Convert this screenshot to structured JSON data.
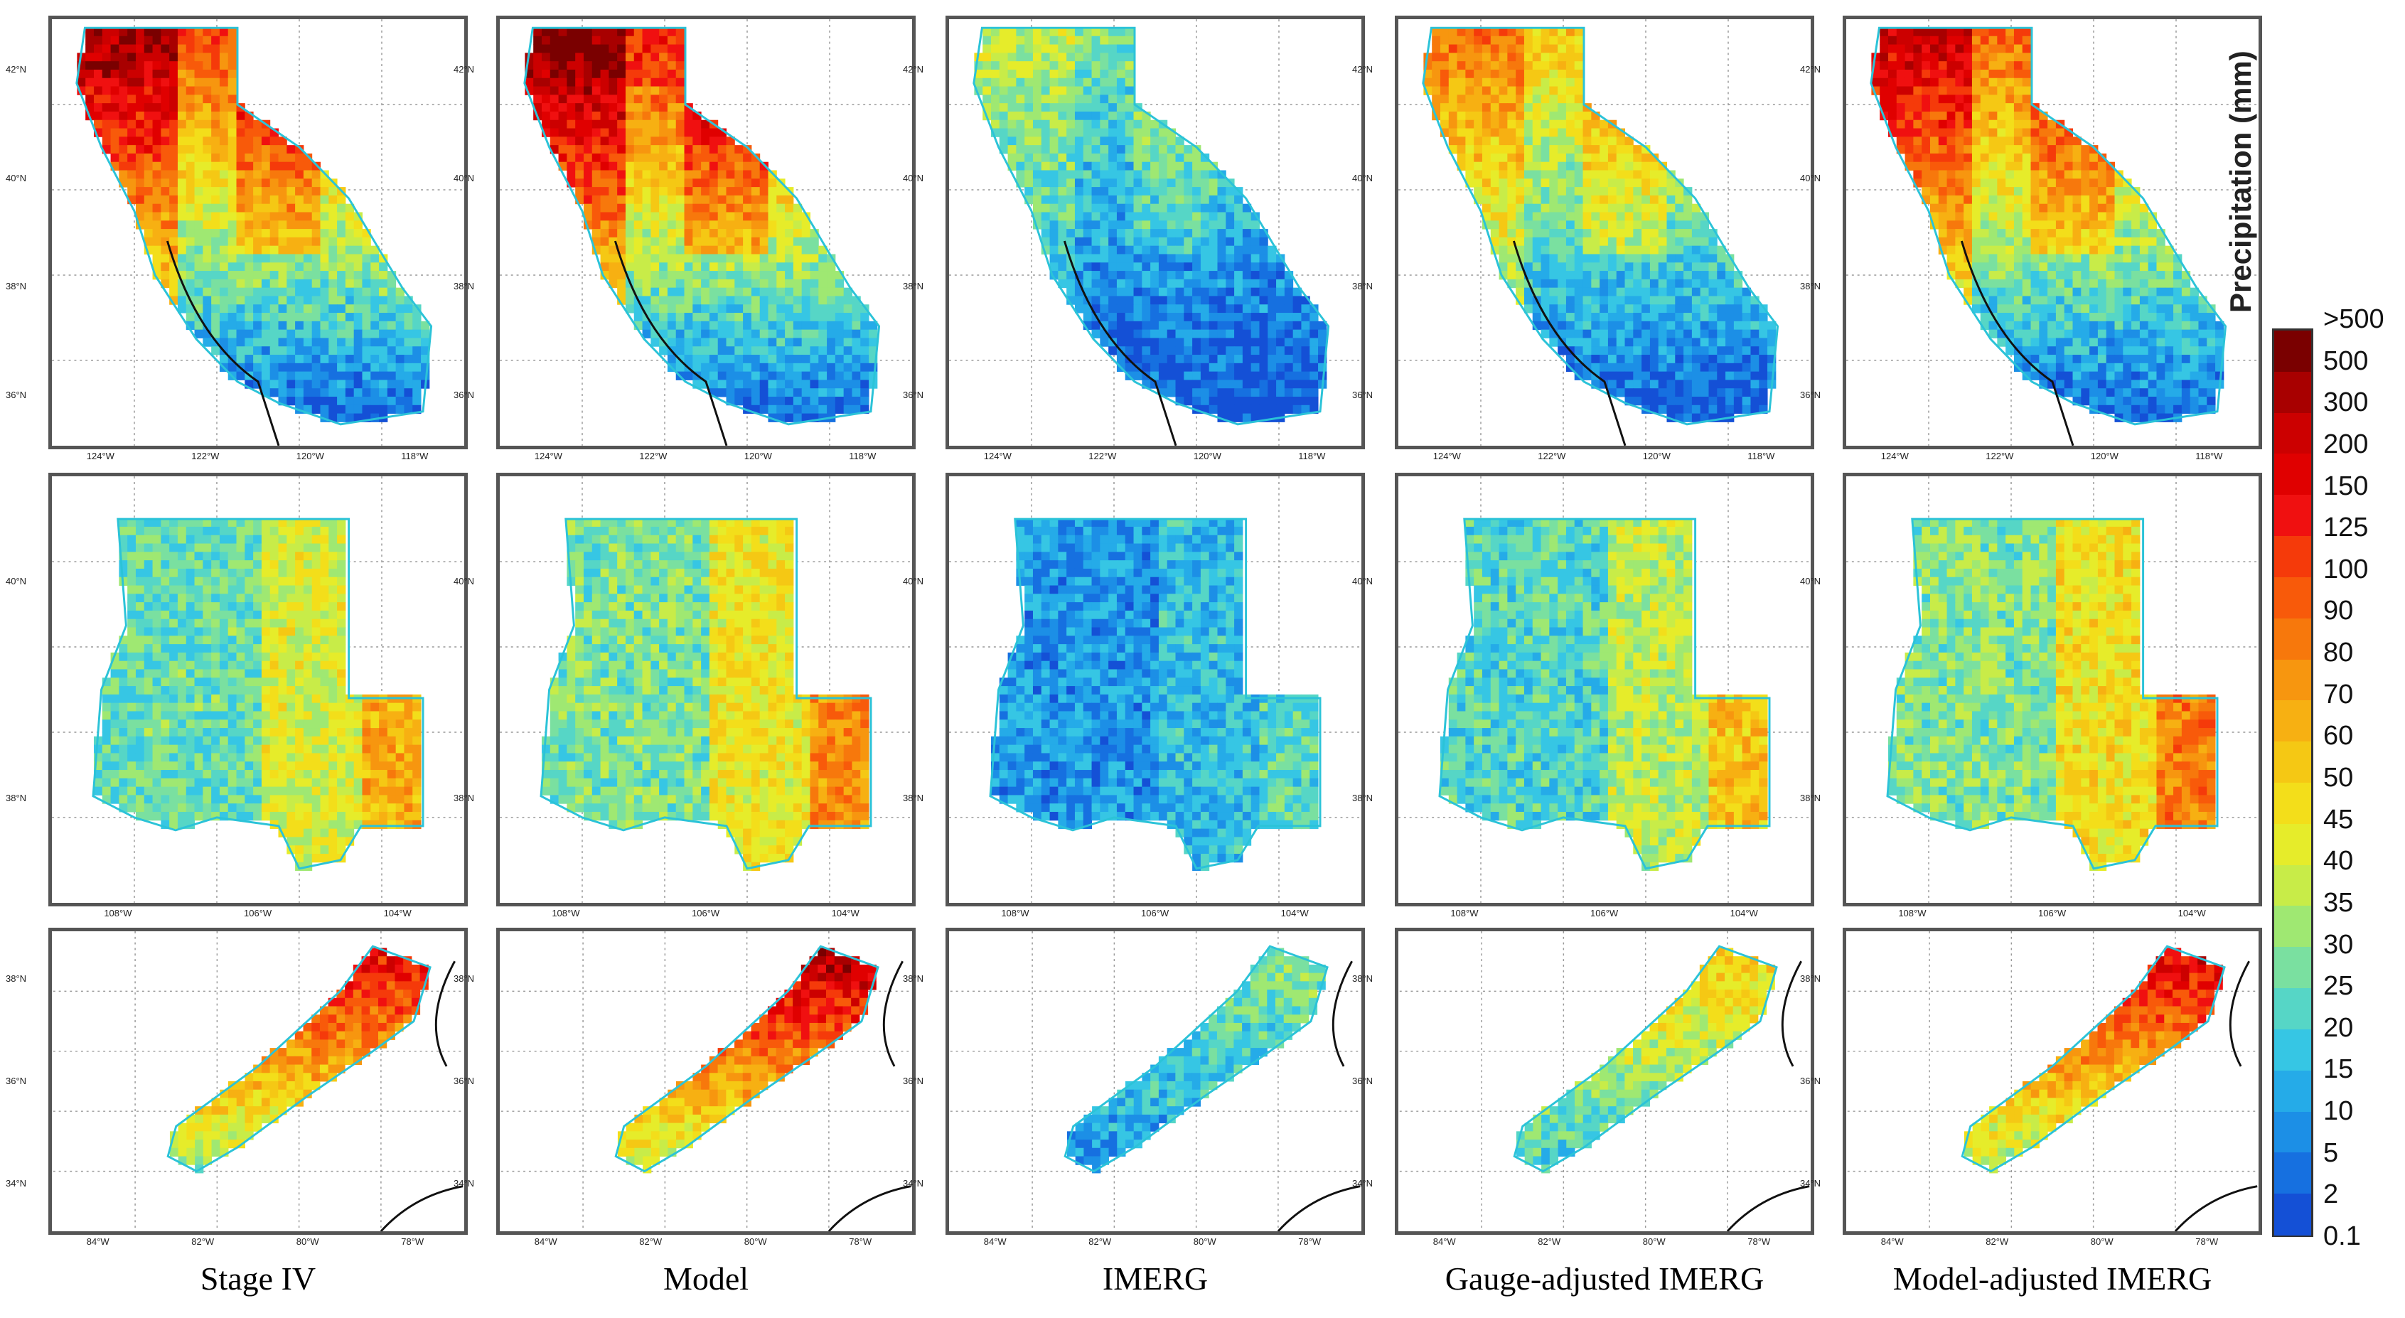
{
  "figure": {
    "columns": [
      {
        "label": "Stage IV"
      },
      {
        "label": "Model"
      },
      {
        "label": "IMERG"
      },
      {
        "label": "Gauge-adjusted IMERG"
      },
      {
        "label": "Model-adjusted IMERG"
      }
    ],
    "rows": [
      {
        "region": "california",
        "lat_ticks": [
          "42°N",
          "40°N",
          "38°N",
          "36°N"
        ],
        "lon_ticks": [
          "124°W",
          "122°W",
          "120°W",
          "118°W"
        ],
        "intensity": [
          0.85,
          0.9,
          0.35,
          0.6,
          0.8
        ]
      },
      {
        "region": "colorado",
        "lat_ticks": [
          "40°N",
          "38°N"
        ],
        "lon_ticks": [
          "108°W",
          "106°W",
          "104°W"
        ],
        "intensity": [
          0.55,
          0.6,
          0.25,
          0.5,
          0.62
        ]
      },
      {
        "region": "southeast",
        "lat_ticks": [
          "38°N",
          "36°N",
          "34°N"
        ],
        "lon_ticks": [
          "84°W",
          "82°W",
          "80°W",
          "78°W"
        ],
        "intensity": [
          0.8,
          0.88,
          0.3,
          0.5,
          0.82
        ]
      }
    ]
  },
  "colorbar": {
    "title": "Precipitation  (mm)",
    "labels": [
      ">500",
      "500",
      "300",
      "200",
      "150",
      "125",
      "100",
      "90",
      "80",
      "70",
      "60",
      "50",
      "45",
      "40",
      "35",
      "30",
      "25",
      "20",
      "15",
      "10",
      "5",
      "2",
      "0.1"
    ],
    "colors": [
      "#7a0000",
      "#a80000",
      "#cc0000",
      "#e00000",
      "#f01010",
      "#f53a0a",
      "#f85a0a",
      "#f7780c",
      "#f7960f",
      "#f7b012",
      "#f5c814",
      "#f3de1a",
      "#e6ec2a",
      "#c8ec48",
      "#9fe872",
      "#7ae0a0",
      "#56d6c6",
      "#36c6e4",
      "#25abe8",
      "#1c8fe6",
      "#1670e0",
      "#1450d6"
    ]
  }
}
